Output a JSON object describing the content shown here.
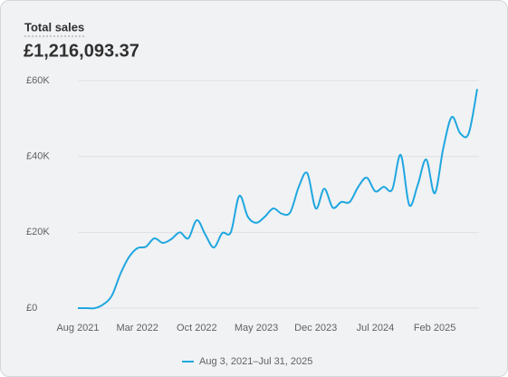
{
  "chart_data": {
    "type": "line",
    "title": "Total sales",
    "total": "£1,216,093.37",
    "categories": [
      "Aug 2021",
      null,
      null,
      null,
      null,
      null,
      null,
      "Mar 2022",
      null,
      null,
      null,
      null,
      null,
      null,
      "Oct 2022",
      null,
      null,
      null,
      null,
      null,
      null,
      "May 2023",
      null,
      null,
      null,
      null,
      null,
      null,
      "Dec 2023",
      null,
      null,
      null,
      null,
      null,
      null,
      "Jul 2024",
      null,
      null,
      null,
      null,
      null,
      null,
      "Feb 2025",
      null,
      null,
      null,
      null,
      null
    ],
    "series": [
      {
        "name": "Aug 3, 2021–Jul 31, 2025",
        "color": "#1fa7e0",
        "values": [
          0,
          0,
          0,
          1000,
          3300,
          9000,
          13400,
          15800,
          16200,
          18400,
          17200,
          18200,
          20000,
          18400,
          23200,
          19400,
          16000,
          19800,
          20000,
          29600,
          24100,
          22500,
          24100,
          26300,
          24900,
          25300,
          32000,
          35600,
          26300,
          31500,
          26500,
          28000,
          28000,
          32000,
          34400,
          30800,
          32000,
          31300,
          40400,
          27200,
          32500,
          39200,
          30300,
          42100,
          50400,
          46100,
          46100,
          57800
        ]
      }
    ],
    "ylim": [
      0,
      60000
    ],
    "yticks": [
      {
        "value": 0,
        "label": "£0"
      },
      {
        "value": 20000,
        "label": "£20K"
      },
      {
        "value": 40000,
        "label": "£40K"
      },
      {
        "value": 60000,
        "label": "£60K"
      }
    ],
    "grid": true
  }
}
